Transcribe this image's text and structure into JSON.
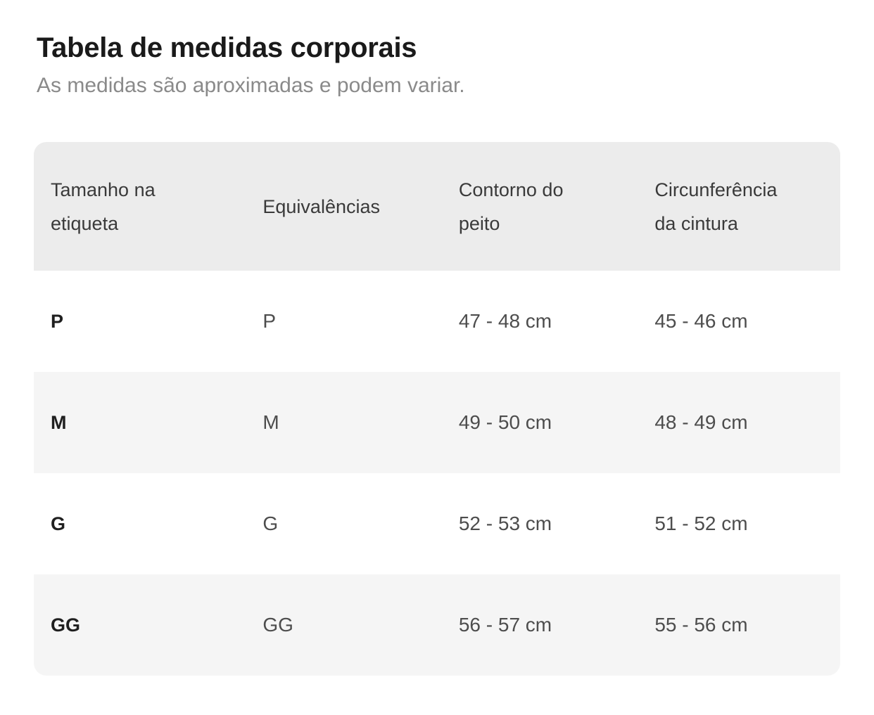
{
  "header": {
    "title": "Tabela de medidas corporais",
    "subtitle": "As medidas são aproximadas e podem variar."
  },
  "size_table": {
    "columns": [
      {
        "id": "size_label",
        "label": "Tamanho na etiqueta"
      },
      {
        "id": "equivalence",
        "label": "Equivalências"
      },
      {
        "id": "chest_contour",
        "label": "Contorno do peito"
      },
      {
        "id": "waist_circumference",
        "label": "Circunferência da cintura"
      }
    ],
    "rows": [
      {
        "size_label": "P",
        "equivalence": "P",
        "chest_contour": "47 - 48 cm",
        "waist_circumference": "45 - 46 cm"
      },
      {
        "size_label": "M",
        "equivalence": "M",
        "chest_contour": "49 - 50 cm",
        "waist_circumference": "48 - 49 cm"
      },
      {
        "size_label": "G",
        "equivalence": "G",
        "chest_contour": "52 - 53 cm",
        "waist_circumference": "51 - 52 cm"
      },
      {
        "size_label": "GG",
        "equivalence": "GG",
        "chest_contour": "56 - 57 cm",
        "waist_circumference": "55 - 56 cm"
      }
    ]
  },
  "colors": {
    "page_bg": "#ffffff",
    "header_row_bg": "#ececec",
    "zebra_row_bg": "#f5f5f5",
    "title_text": "#1a1a1a",
    "subtitle_text": "#8a8a8a",
    "column_header_text": "#3a3a3a",
    "cell_text": "#4d4d4d",
    "size_cell_text": "#1f1f1f"
  }
}
